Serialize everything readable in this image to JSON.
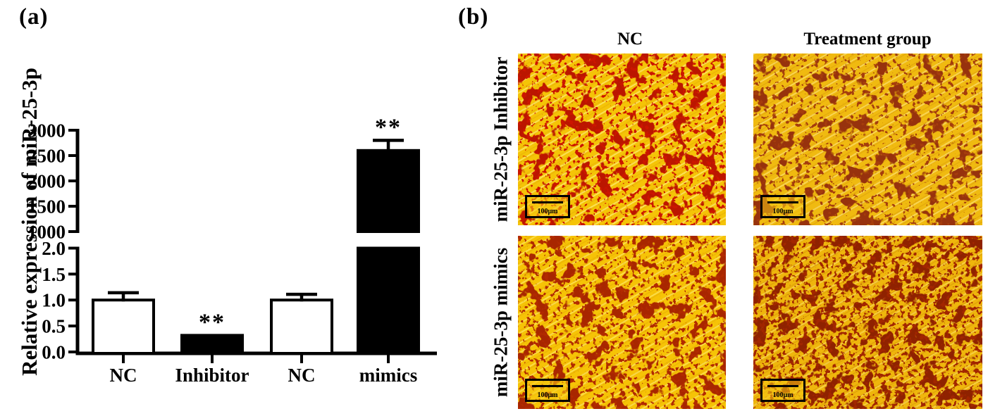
{
  "figure": {
    "panel_a_label": "(a)",
    "panel_b_label": "(b)"
  },
  "chart_data": {
    "type": "bar",
    "title": "",
    "xlabel": "",
    "ylabel": "Relative expression  of miR-25-3p",
    "categories": [
      "NC",
      "Inhibitor",
      "NC",
      "mimics"
    ],
    "values": [
      1.0,
      0.32,
      1.0,
      2600
    ],
    "errors": [
      0.14,
      0,
      0.11,
      200
    ],
    "bar_fills": [
      "white",
      "black",
      "white",
      "black"
    ],
    "significance": [
      "",
      "**",
      "",
      "**"
    ],
    "legend": null,
    "grid": false,
    "y_axis": {
      "broken": true,
      "lower": {
        "range": [
          0,
          2
        ],
        "tick_labels": [
          "0.0",
          "0.5",
          "1.0",
          "1.5",
          "2.0"
        ]
      },
      "upper": {
        "range": [
          1000,
          3000
        ],
        "tick_labels": [
          "1000",
          "1500",
          "2000",
          "2500",
          "3000"
        ]
      }
    }
  },
  "panel_b": {
    "column_headers": [
      "NC",
      "Treatment group"
    ],
    "row_labels": [
      "miR-25-3p Inhibitor",
      "miR-25-3p mimics"
    ],
    "scale_bar_label": "100μm",
    "micrographs": [
      {
        "row": "miR-25-3p Inhibitor",
        "column": "NC",
        "stain": "Oil Red O, red droplets on yellow field",
        "density": "moderate"
      },
      {
        "row": "miR-25-3p Inhibitor",
        "column": "Treatment group",
        "stain": "Oil Red O, brownish-red droplets on yellow field",
        "density": "moderate"
      },
      {
        "row": "miR-25-3p mimics",
        "column": "NC",
        "stain": "Oil Red O, brick-red droplets on yellow field",
        "density": "moderate"
      },
      {
        "row": "miR-25-3p mimics",
        "column": "Treatment group",
        "stain": "Oil Red O, dense dark-red droplets on yellow field",
        "density": "dense"
      }
    ],
    "accent_colors": {
      "field_yellow": "#f5c407",
      "droplet_red": "#bb1503"
    }
  }
}
